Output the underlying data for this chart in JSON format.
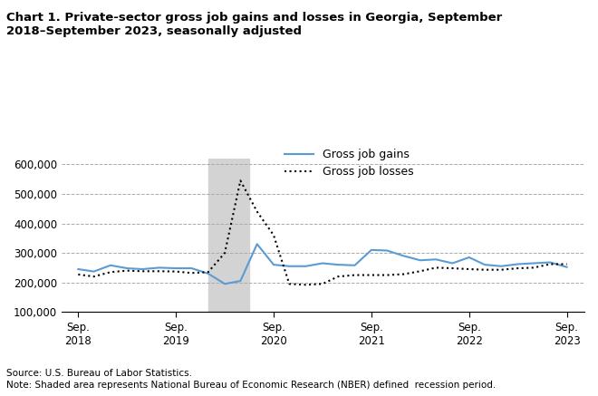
{
  "title": "Chart 1. Private-sector gross job gains and losses in Georgia, September\n2018–September 2023, seasonally adjusted",
  "source": "Source: U.S. Bureau of Labor Statistics.",
  "note": "Note: Shaded area represents National Bureau of Economic Research (NBER) defined  recession period.",
  "legend_gains": "Gross job gains",
  "legend_losses": "Gross job losses",
  "gains_color": "#5b9bd5",
  "losses_color": "#000000",
  "recession_color": "#d3d3d3",
  "recession_start": 2020.0,
  "recession_end": 2020.42,
  "ylim": [
    100000,
    620000
  ],
  "yticks": [
    100000,
    200000,
    300000,
    400000,
    500000,
    600000
  ],
  "ytick_labels": [
    "100,000",
    "200,000",
    "300,000",
    "400,000",
    "500,000",
    "600,000"
  ],
  "xtick_positions": [
    2018.67,
    2019.67,
    2020.67,
    2021.67,
    2022.67,
    2023.67
  ],
  "xtick_labels": [
    "Sep.\n2018",
    "Sep.\n2019",
    "Sep.\n2020",
    "Sep.\n2021",
    "Sep.\n2022",
    "Sep.\n2023"
  ],
  "gains_x": [
    2018.67,
    2018.83,
    2019.0,
    2019.17,
    2019.33,
    2019.5,
    2019.67,
    2019.83,
    2020.0,
    2020.17,
    2020.33,
    2020.5,
    2020.67,
    2020.83,
    2021.0,
    2021.17,
    2021.33,
    2021.5,
    2021.67,
    2021.83,
    2022.0,
    2022.17,
    2022.33,
    2022.5,
    2022.67,
    2022.83,
    2023.0,
    2023.17,
    2023.33,
    2023.5,
    2023.67
  ],
  "gains_y": [
    245000,
    237000,
    258000,
    248000,
    245000,
    250000,
    248000,
    248000,
    230000,
    195000,
    205000,
    330000,
    260000,
    255000,
    255000,
    265000,
    260000,
    258000,
    310000,
    308000,
    290000,
    275000,
    278000,
    265000,
    285000,
    260000,
    255000,
    262000,
    265000,
    268000,
    252000
  ],
  "losses_x": [
    2018.67,
    2018.83,
    2019.0,
    2019.17,
    2019.33,
    2019.5,
    2019.67,
    2019.83,
    2020.0,
    2020.17,
    2020.33,
    2020.5,
    2020.67,
    2020.83,
    2021.0,
    2021.17,
    2021.33,
    2021.5,
    2021.67,
    2021.83,
    2022.0,
    2022.17,
    2022.33,
    2022.5,
    2022.67,
    2022.83,
    2023.0,
    2023.17,
    2023.33,
    2023.5,
    2023.67
  ],
  "losses_y": [
    227000,
    220000,
    235000,
    240000,
    238000,
    238000,
    237000,
    232000,
    235000,
    300000,
    545000,
    440000,
    360000,
    195000,
    192000,
    195000,
    220000,
    225000,
    225000,
    225000,
    228000,
    238000,
    250000,
    248000,
    245000,
    243000,
    243000,
    248000,
    250000,
    262000,
    262000
  ]
}
